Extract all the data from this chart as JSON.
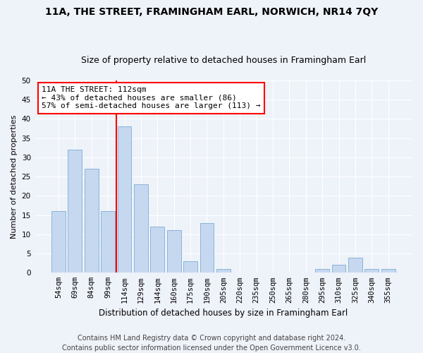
{
  "title1": "11A, THE STREET, FRAMINGHAM EARL, NORWICH, NR14 7QY",
  "title2": "Size of property relative to detached houses in Framingham Earl",
  "xlabel": "Distribution of detached houses by size in Framingham Earl",
  "ylabel": "Number of detached properties",
  "categories": [
    "54sqm",
    "69sqm",
    "84sqm",
    "99sqm",
    "114sqm",
    "129sqm",
    "144sqm",
    "160sqm",
    "175sqm",
    "190sqm",
    "205sqm",
    "220sqm",
    "235sqm",
    "250sqm",
    "265sqm",
    "280sqm",
    "295sqm",
    "310sqm",
    "325sqm",
    "340sqm",
    "355sqm"
  ],
  "values": [
    16,
    32,
    27,
    16,
    38,
    23,
    12,
    11,
    3,
    13,
    1,
    0,
    0,
    0,
    0,
    0,
    1,
    2,
    4,
    1,
    1
  ],
  "bar_color": "#c5d8f0",
  "bar_edgecolor": "#8ab4d8",
  "vline_x_index": 4,
  "vline_color": "red",
  "annotation_line1": "11A THE STREET: 112sqm",
  "annotation_line2": "← 43% of detached houses are smaller (86)",
  "annotation_line3": "57% of semi-detached houses are larger (113) →",
  "annotation_box_color": "white",
  "annotation_box_edgecolor": "red",
  "ylim": [
    0,
    50
  ],
  "yticks": [
    0,
    5,
    10,
    15,
    20,
    25,
    30,
    35,
    40,
    45,
    50
  ],
  "footer1": "Contains HM Land Registry data © Crown copyright and database right 2024.",
  "footer2": "Contains public sector information licensed under the Open Government Licence v3.0.",
  "bg_color": "#eef2f9",
  "grid_color": "#ffffff",
  "title1_fontsize": 10,
  "title2_fontsize": 9,
  "xlabel_fontsize": 8.5,
  "ylabel_fontsize": 8,
  "tick_fontsize": 7.5,
  "annotation_fontsize": 8,
  "footer_fontsize": 7
}
